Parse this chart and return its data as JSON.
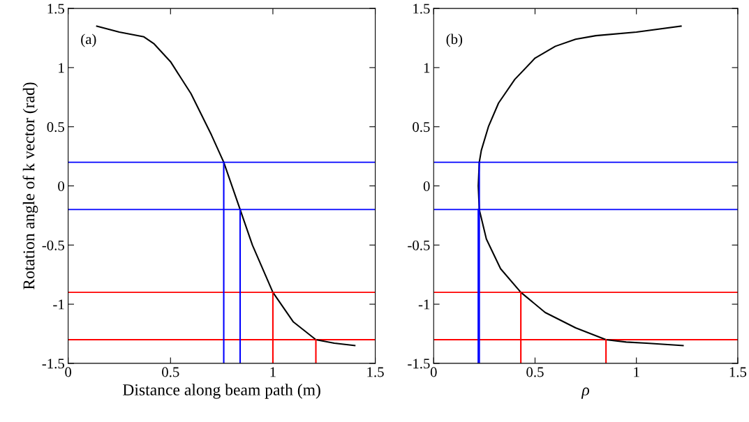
{
  "chart_data": [
    {
      "type": "line",
      "xlabel": "Distance along beam path (m)",
      "ylabel": "Rotation angle of k vector (rad)",
      "annotations": [
        "(a)"
      ],
      "xlim": [
        0,
        1.5
      ],
      "ylim": [
        -1.5,
        1.5
      ],
      "xticks": [
        0,
        0.5,
        1,
        1.5
      ],
      "yticks": [
        -1.5,
        -1,
        -0.5,
        0,
        0.5,
        1,
        1.5
      ],
      "grid": false,
      "legend": false,
      "ref_lines": [
        {
          "axis": "y",
          "value": 0.2,
          "color": "#0000ff"
        },
        {
          "axis": "y",
          "value": -0.2,
          "color": "#0000ff"
        },
        {
          "axis": "y",
          "value": -0.9,
          "color": "#ff0000"
        },
        {
          "axis": "y",
          "value": -1.3,
          "color": "#ff0000"
        }
      ],
      "series": [
        {
          "color": "#000000",
          "x": [
            0.14,
            0.25,
            0.37,
            0.42,
            0.5,
            0.6,
            0.7,
            0.76,
            0.84,
            0.9,
            1.0,
            1.1,
            1.21,
            1.3,
            1.4
          ],
          "values": [
            1.35,
            1.3,
            1.26,
            1.2,
            1.05,
            0.78,
            0.43,
            0.2,
            -0.2,
            -0.5,
            -0.9,
            -1.15,
            -1.3,
            -1.33,
            -1.35
          ]
        },
        {
          "color": "#0000ff",
          "x": [
            0.76,
            0.76
          ],
          "values": [
            -1.5,
            0.2
          ]
        },
        {
          "color": "#0000ff",
          "x": [
            0.84,
            0.84
          ],
          "values": [
            -1.5,
            -0.2
          ]
        },
        {
          "color": "#ff0000",
          "x": [
            1.0,
            1.0
          ],
          "values": [
            -1.5,
            -0.9
          ]
        },
        {
          "color": "#ff0000",
          "x": [
            1.21,
            1.21
          ],
          "values": [
            -1.5,
            -1.3
          ]
        }
      ]
    },
    {
      "type": "line",
      "xlabel": "ρ",
      "annotations": [
        "(b)"
      ],
      "xlim": [
        0,
        1.5
      ],
      "ylim": [
        -1.5,
        1.5
      ],
      "xticks": [
        0,
        0.5,
        1,
        1.5
      ],
      "yticks": [
        -1.5,
        -1,
        -0.5,
        0,
        0.5,
        1,
        1.5
      ],
      "grid": false,
      "legend": false,
      "ref_lines": [
        {
          "axis": "y",
          "value": 0.2,
          "color": "#0000ff"
        },
        {
          "axis": "y",
          "value": -0.2,
          "color": "#0000ff"
        },
        {
          "axis": "y",
          "value": -0.9,
          "color": "#ff0000"
        },
        {
          "axis": "y",
          "value": -1.3,
          "color": "#ff0000"
        }
      ],
      "series": [
        {
          "color": "#000000",
          "x": [
            1.22,
            1.0,
            0.8,
            0.7,
            0.6,
            0.5,
            0.4,
            0.32,
            0.27,
            0.235,
            0.225,
            0.22,
            0.225,
            0.26,
            0.33,
            0.43,
            0.55,
            0.7,
            0.85,
            0.95,
            1.05,
            1.23
          ],
          "values": [
            1.35,
            1.3,
            1.27,
            1.24,
            1.18,
            1.08,
            0.9,
            0.7,
            0.5,
            0.3,
            0.2,
            0.0,
            -0.2,
            -0.45,
            -0.7,
            -0.9,
            -1.07,
            -1.2,
            -1.3,
            -1.32,
            -1.33,
            -1.35
          ]
        },
        {
          "color": "#0000ff",
          "x": [
            0.225,
            0.225
          ],
          "values": [
            -1.5,
            0.2
          ]
        },
        {
          "color": "#0000ff",
          "x": [
            0.22,
            0.22
          ],
          "values": [
            -1.5,
            -0.2
          ]
        },
        {
          "color": "#ff0000",
          "x": [
            0.43,
            0.43
          ],
          "values": [
            -1.5,
            -0.9
          ]
        },
        {
          "color": "#ff0000",
          "x": [
            0.85,
            0.85
          ],
          "values": [
            -1.5,
            -1.3
          ]
        }
      ]
    }
  ]
}
